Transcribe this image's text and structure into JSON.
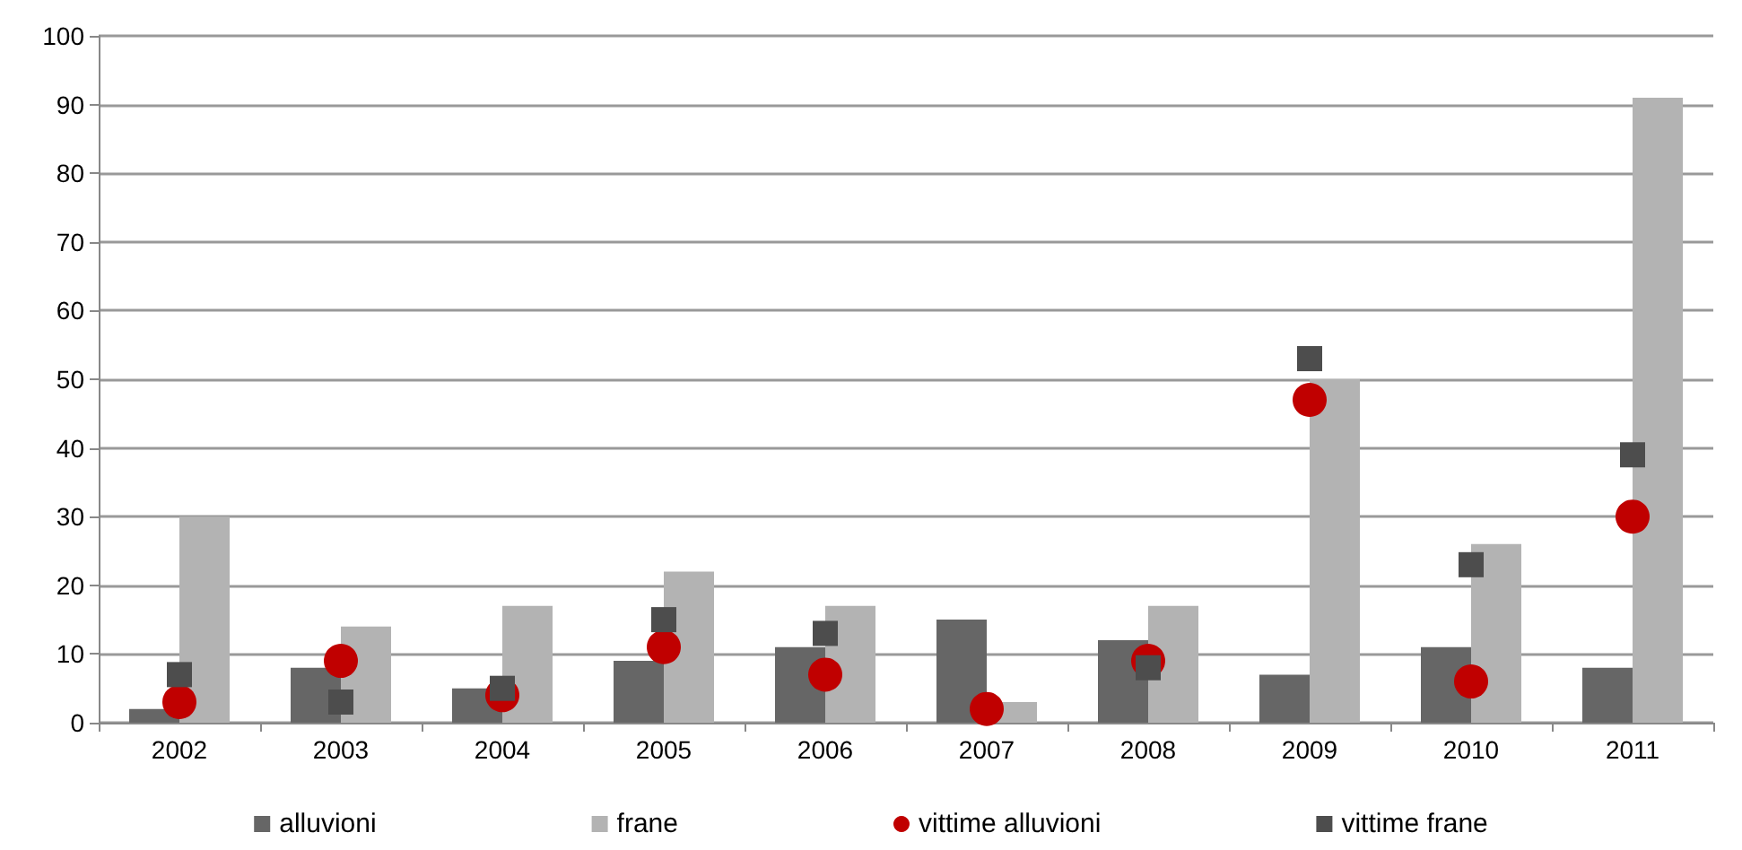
{
  "chart_data": {
    "type": "bar",
    "categories": [
      "2002",
      "2003",
      "2004",
      "2005",
      "2006",
      "2007",
      "2008",
      "2009",
      "2010",
      "2011"
    ],
    "series": [
      {
        "name": "alluvioni",
        "color": "#666666",
        "values": [
          2,
          8,
          5,
          9,
          11,
          15,
          12,
          7,
          11,
          8
        ]
      },
      {
        "name": "frane",
        "color": "#b3b3b3",
        "values": [
          30,
          14,
          17,
          22,
          17,
          3,
          17,
          50,
          26,
          91
        ]
      },
      {
        "name": "vittime alluvioni",
        "type": "scatter",
        "marker": "circle",
        "color": "#c00000",
        "values": [
          3,
          9,
          4,
          11,
          7,
          2,
          9,
          47,
          6,
          30
        ]
      },
      {
        "name": "vittime frane",
        "type": "scatter",
        "marker": "square",
        "color": "#4d4d4d",
        "values": [
          7,
          3,
          5,
          15,
          13,
          null,
          8,
          53,
          23,
          39
        ]
      }
    ],
    "ylim": [
      0,
      100
    ],
    "yticks": [
      0,
      10,
      20,
      30,
      40,
      50,
      60,
      70,
      80,
      90,
      100
    ],
    "grid": "y",
    "legend": "bottom"
  }
}
